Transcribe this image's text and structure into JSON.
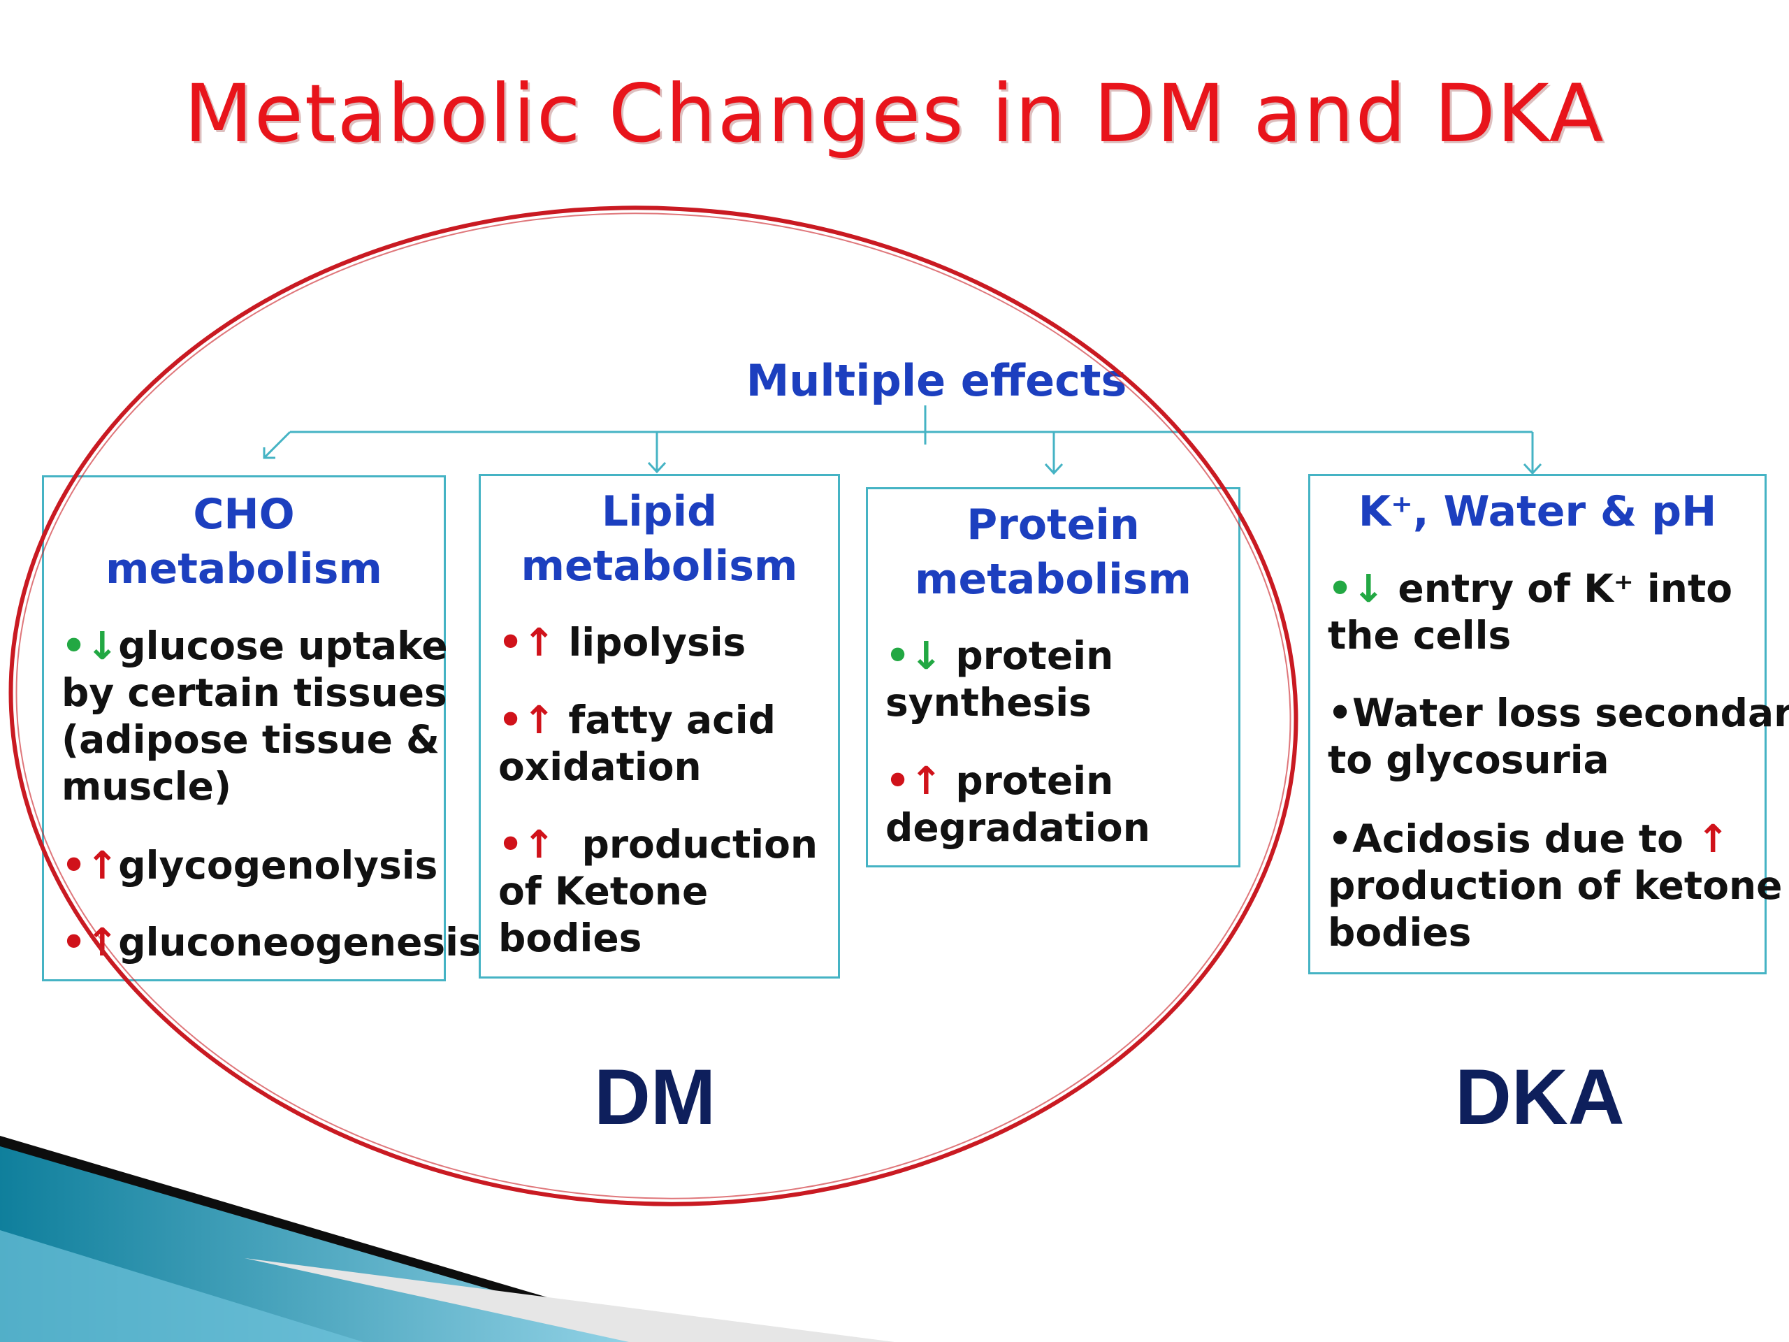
{
  "title": "Metabolic Changes in DM and DKA",
  "root_label": "Multiple effects",
  "colors": {
    "title": "#e8141b",
    "heading": "#1c3fbf",
    "box_border": "#45b3c4",
    "ellipse": "#c91a22",
    "decrease_arrow": "#22a843",
    "increase_arrow": "#d0121a",
    "group_label": "#0e1f5c"
  },
  "boxes": {
    "cho": {
      "title_l1": "CHO",
      "title_l2": "metabolism",
      "b1": {
        "arrow": "↓",
        "l1": "glucose uptake",
        "l2": "by certain tissues",
        "l3": "(adipose tissue &",
        "l4": "muscle)"
      },
      "b2": {
        "arrow": "↑",
        "l1": "glycogenolysis"
      },
      "b3": {
        "arrow": "↑",
        "l1": "gluconeogenesis"
      }
    },
    "lipid": {
      "title_l1": "Lipid",
      "title_l2": "metabolism",
      "b1": {
        "arrow": "↑",
        "l1": " lipolysis"
      },
      "b2": {
        "arrow": "↑",
        "l1": " fatty acid",
        "l2": "oxidation"
      },
      "b3": {
        "arrow": "↑",
        "l1": "  production",
        "l2": "of Ketone",
        "l3": "bodies"
      }
    },
    "protein": {
      "title_l1": "Protein",
      "title_l2": "metabolism",
      "b1": {
        "arrow": "↓",
        "l1": " protein",
        "l2": "synthesis"
      },
      "b2": {
        "arrow": "↑",
        "l1": " protein",
        "l2": "degradation"
      }
    },
    "kwater": {
      "title": "K⁺, Water & pH",
      "b1": {
        "arrow": "↓",
        "l1": " entry of K⁺ into",
        "l2": "the cells"
      },
      "b2": {
        "l1": "•Water loss secondary",
        "l2": "to glycosuria"
      },
      "b3": {
        "l1": "•Acidosis due to ",
        "arrow": "↑",
        "l2": "production of ketone",
        "l3": "bodies"
      }
    }
  },
  "group_labels": {
    "dm": "DM",
    "dka": "DKA"
  }
}
